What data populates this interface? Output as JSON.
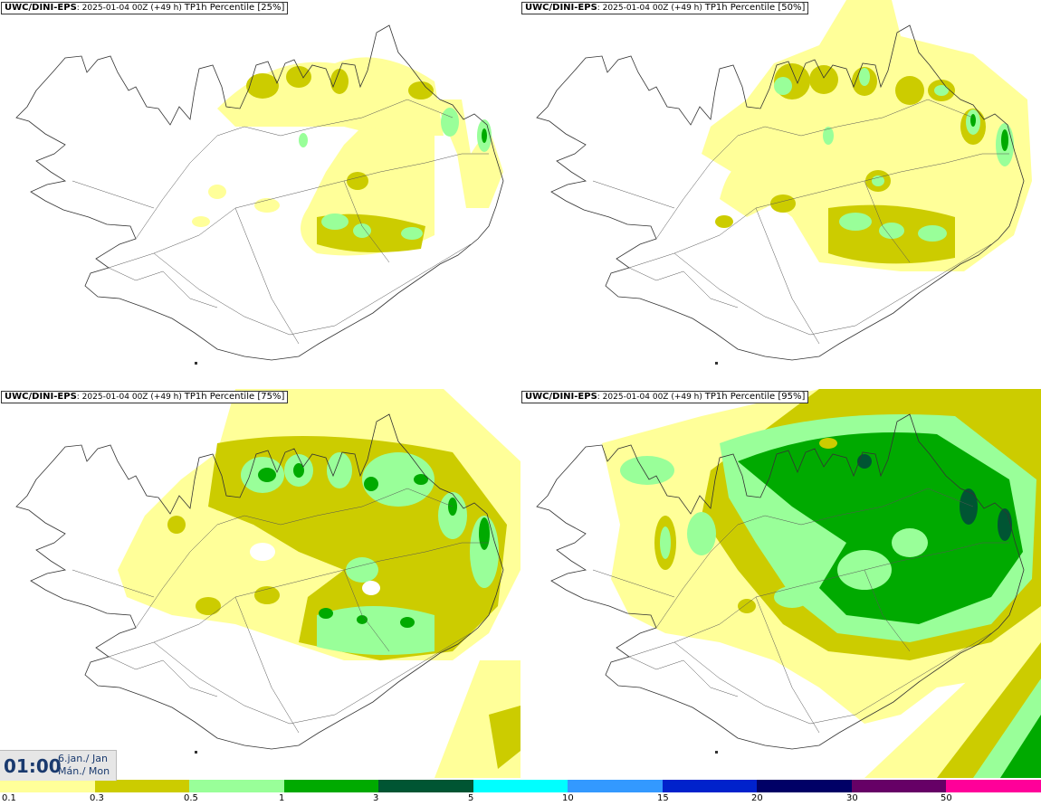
{
  "panels": [
    {
      "model": "UWC/DINI-EPS",
      "run": "2025-01-04 00Z (+49 h)",
      "param": "TP1h Percentile [25%]"
    },
    {
      "model": "UWC/DINI-EPS",
      "run": "2025-01-04 00Z (+49 h)",
      "param": "TP1h Percentile [50%]"
    },
    {
      "model": "UWC/DINI-EPS",
      "run": "2025-01-04 00Z (+49 h)",
      "param": "TP1h Percentile [75%]"
    },
    {
      "model": "UWC/DINI-EPS",
      "run": "2025-01-04 00Z (+49 h)",
      "param": "TP1h Percentile [95%]"
    }
  ],
  "time": {
    "hour": "01:00",
    "date_line": "6.jan./ Jan",
    "day_line": "Mán./ Mon"
  },
  "legend": {
    "labels": [
      "0.1",
      "0.3",
      "0.5",
      "1",
      "3",
      "5",
      "10",
      "15",
      "20",
      "30",
      "50"
    ],
    "colors": [
      "#ffff99",
      "#cccc00",
      "#99ff99",
      "#00aa00",
      "#005533",
      "#00ffff",
      "#3399ff",
      "#0022cc",
      "#000066",
      "#660066",
      "#ff0099",
      "#ff0000"
    ]
  }
}
